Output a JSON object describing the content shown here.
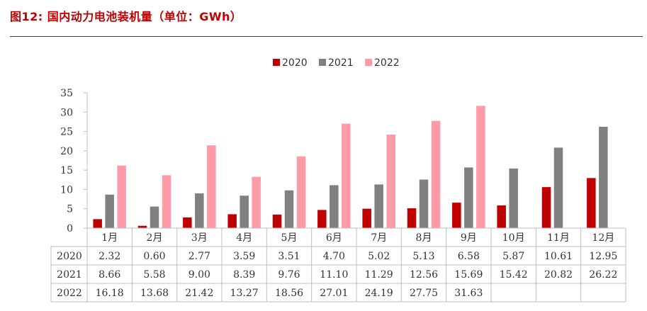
{
  "figure": {
    "title": "图12:  国内动力电池装机量（单位：GWh）"
  },
  "colors": {
    "accent": "#c00000",
    "2020": "#c00000",
    "2021": "#808080",
    "2022": "#ff9aa8",
    "grid": "#bfbfbf",
    "text": "#333333"
  },
  "chart_data": {
    "type": "bar",
    "title": "",
    "xlabel": "",
    "ylabel": "",
    "ylim": [
      0,
      35
    ],
    "yticks": [
      0,
      5,
      10,
      15,
      20,
      25,
      30,
      35
    ],
    "grid": false,
    "legend_position": "top-center",
    "categories": [
      "1月",
      "2月",
      "3月",
      "4月",
      "5月",
      "6月",
      "7月",
      "8月",
      "9月",
      "10月",
      "11月",
      "12月"
    ],
    "series": [
      {
        "name": "2020",
        "values": [
          2.32,
          0.6,
          2.77,
          3.59,
          3.51,
          4.7,
          5.02,
          5.13,
          6.58,
          5.87,
          10.61,
          12.95
        ]
      },
      {
        "name": "2021",
        "values": [
          8.66,
          5.58,
          9.0,
          8.39,
          9.76,
          11.1,
          11.29,
          12.56,
          15.69,
          15.42,
          20.82,
          26.22
        ]
      },
      {
        "name": "2022",
        "values": [
          16.18,
          13.68,
          21.42,
          13.27,
          18.56,
          27.01,
          24.19,
          27.75,
          31.63,
          null,
          null,
          null
        ]
      }
    ],
    "table": {
      "row_labels": [
        "2020",
        "2021",
        "2022"
      ],
      "rows": [
        [
          "2.32",
          "0.60",
          "2.77",
          "3.59",
          "3.51",
          "4.70",
          "5.02",
          "5.13",
          "6.58",
          "5.87",
          "10.61",
          "12.95"
        ],
        [
          "8.66",
          "5.58",
          "9.00",
          "8.39",
          "9.76",
          "11.10",
          "11.29",
          "12.56",
          "15.69",
          "15.42",
          "20.82",
          "26.22"
        ],
        [
          "16.18",
          "13.68",
          "21.42",
          "13.27",
          "18.56",
          "27.01",
          "24.19",
          "27.75",
          "31.63",
          "",
          "",
          ""
        ]
      ]
    }
  }
}
